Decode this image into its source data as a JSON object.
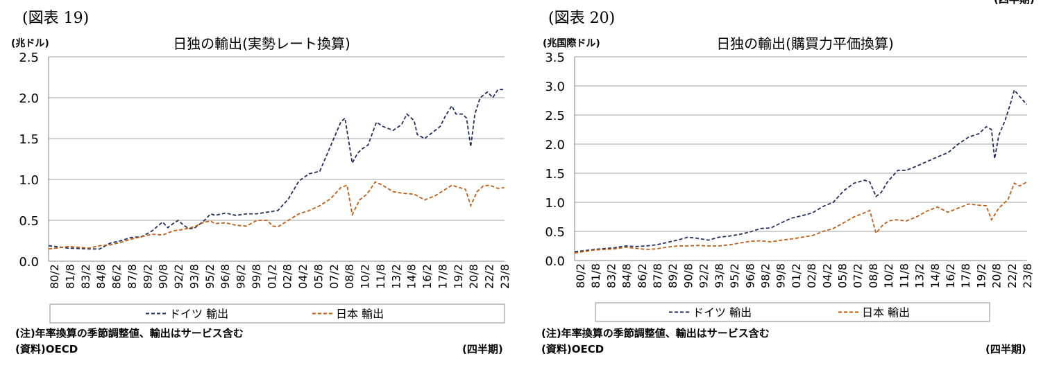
{
  "page": {
    "corner_label": "(四半期)"
  },
  "chart_data": [
    {
      "figure_label": "(図表 19)",
      "title": "日独の輸出(実勢レート換算)",
      "unit": "(兆ドル)",
      "type": "line",
      "ylim": [
        0,
        2.5
      ],
      "yticks": [
        "0.0",
        "0.5",
        "1.0",
        "1.5",
        "2.0",
        "2.5"
      ],
      "grid": true,
      "legend_position": "bottom",
      "x_labels": [
        "80/2",
        "81/8",
        "83/2",
        "84/8",
        "86/2",
        "87/8",
        "89/2",
        "90/8",
        "92/2",
        "93/8",
        "95/2",
        "96/8",
        "98/2",
        "99/8",
        "01/2",
        "02/8",
        "04/2",
        "05/8",
        "07/2",
        "08/8",
        "10/2",
        "11/8",
        "13/2",
        "14/8",
        "16/2",
        "17/8",
        "19/2",
        "20/8",
        "22/2",
        "23/8"
      ],
      "series": [
        {
          "name": "ドイツ 輸出",
          "color": "#1f2d5c",
          "values": [
            [
              1980.13,
              0.19
            ],
            [
              1982,
              0.16
            ],
            [
              1984,
              0.15
            ],
            [
              1985,
              0.15
            ],
            [
              1986,
              0.22
            ],
            [
              1987,
              0.25
            ],
            [
              1988,
              0.29
            ],
            [
              1989,
              0.3
            ],
            [
              1990,
              0.37
            ],
            [
              1991,
              0.48
            ],
            [
              1991.5,
              0.41
            ],
            [
              1992,
              0.46
            ],
            [
              1992.5,
              0.5
            ],
            [
              1993,
              0.44
            ],
            [
              1993.5,
              0.4
            ],
            [
              1994,
              0.4
            ],
            [
              1995,
              0.5
            ],
            [
              1995.6,
              0.58
            ],
            [
              1996,
              0.56
            ],
            [
              1997,
              0.59
            ],
            [
              1998,
              0.56
            ],
            [
              1999,
              0.58
            ],
            [
              2000,
              0.58
            ],
            [
              2001,
              0.6
            ],
            [
              2002,
              0.62
            ],
            [
              2003,
              0.76
            ],
            [
              2004,
              0.98
            ],
            [
              2005,
              1.07
            ],
            [
              2006,
              1.1
            ],
            [
              2007,
              1.4
            ],
            [
              2008,
              1.7
            ],
            [
              2008.4,
              1.75
            ],
            [
              2009.1,
              1.2
            ],
            [
              2009.6,
              1.32
            ],
            [
              2010.1,
              1.38
            ],
            [
              2010.6,
              1.42
            ],
            [
              2011.4,
              1.7
            ],
            [
              2012,
              1.65
            ],
            [
              2013,
              1.6
            ],
            [
              2013.8,
              1.67
            ],
            [
              2014.3,
              1.8
            ],
            [
              2015,
              1.72
            ],
            [
              2015.3,
              1.55
            ],
            [
              2016,
              1.5
            ],
            [
              2016.8,
              1.58
            ],
            [
              2017.5,
              1.65
            ],
            [
              2018,
              1.78
            ],
            [
              2018.6,
              1.9
            ],
            [
              2019,
              1.8
            ],
            [
              2019.6,
              1.8
            ],
            [
              2020,
              1.75
            ],
            [
              2020.4,
              1.4
            ],
            [
              2020.8,
              1.8
            ],
            [
              2021.3,
              2.0
            ],
            [
              2022,
              2.07
            ],
            [
              2022.5,
              2.0
            ],
            [
              2023,
              2.1
            ],
            [
              2023.6,
              2.1
            ]
          ]
        },
        {
          "name": "日本 輸出",
          "color": "#c55a11",
          "values": [
            [
              1980.13,
              0.15
            ],
            [
              1982,
              0.18
            ],
            [
              1984,
              0.16
            ],
            [
              1985,
              0.19
            ],
            [
              1986,
              0.2
            ],
            [
              1987,
              0.23
            ],
            [
              1988,
              0.27
            ],
            [
              1989,
              0.3
            ],
            [
              1990,
              0.33
            ],
            [
              1991,
              0.32
            ],
            [
              1992,
              0.37
            ],
            [
              1993,
              0.39
            ],
            [
              1994,
              0.42
            ],
            [
              1995,
              0.48
            ],
            [
              1995.6,
              0.49
            ],
            [
              1996,
              0.46
            ],
            [
              1997,
              0.47
            ],
            [
              1998,
              0.44
            ],
            [
              1999,
              0.43
            ],
            [
              2000,
              0.5
            ],
            [
              2001,
              0.5
            ],
            [
              2001.5,
              0.43
            ],
            [
              2002,
              0.42
            ],
            [
              2003,
              0.5
            ],
            [
              2004,
              0.58
            ],
            [
              2005,
              0.62
            ],
            [
              2006,
              0.68
            ],
            [
              2007,
              0.76
            ],
            [
              2008,
              0.9
            ],
            [
              2008.6,
              0.93
            ],
            [
              2009.1,
              0.57
            ],
            [
              2009.8,
              0.75
            ],
            [
              2010.5,
              0.82
            ],
            [
              2011.3,
              0.97
            ],
            [
              2012,
              0.93
            ],
            [
              2013,
              0.85
            ],
            [
              2014,
              0.83
            ],
            [
              2015,
              0.82
            ],
            [
              2016,
              0.75
            ],
            [
              2017,
              0.8
            ],
            [
              2018,
              0.88
            ],
            [
              2018.6,
              0.93
            ],
            [
              2019.3,
              0.9
            ],
            [
              2019.9,
              0.88
            ],
            [
              2020.4,
              0.68
            ],
            [
              2021,
              0.85
            ],
            [
              2021.6,
              0.92
            ],
            [
              2022.2,
              0.93
            ],
            [
              2023,
              0.89
            ],
            [
              2023.6,
              0.9
            ]
          ]
        }
      ],
      "note": "(注)年率換算の季節調整値、輸出はサービス含む",
      "source": "(資料)OECD",
      "period_label": "(四半期)"
    },
    {
      "figure_label": "(図表 20)",
      "title": "日独の輸出(購買力平価換算)",
      "unit": "(兆国際ドル)",
      "type": "line",
      "ylim": [
        0,
        3.5
      ],
      "yticks": [
        "0.0",
        "0.5",
        "1.0",
        "1.5",
        "2.0",
        "2.5",
        "3.0",
        "3.5"
      ],
      "grid": true,
      "legend_position": "bottom",
      "x_labels": [
        "80/2",
        "81/8",
        "83/2",
        "84/8",
        "86/2",
        "87/8",
        "89/2",
        "90/8",
        "92/2",
        "93/8",
        "95/2",
        "96/8",
        "98/2",
        "99/8",
        "01/2",
        "02/8",
        "04/2",
        "05/8",
        "07/2",
        "08/8",
        "10/2",
        "11/8",
        "13/2",
        "14/8",
        "16/2",
        "17/8",
        "19/2",
        "20/8",
        "22/2",
        "23/8"
      ],
      "series": [
        {
          "name": "ドイツ 輸出",
          "color": "#1f2d5c",
          "values": [
            [
              1980.13,
              0.15
            ],
            [
              1982,
              0.19
            ],
            [
              1984,
              0.22
            ],
            [
              1985,
              0.25
            ],
            [
              1986,
              0.24
            ],
            [
              1987,
              0.25
            ],
            [
              1988,
              0.27
            ],
            [
              1989,
              0.31
            ],
            [
              1990,
              0.35
            ],
            [
              1991,
              0.4
            ],
            [
              1992,
              0.38
            ],
            [
              1993,
              0.35
            ],
            [
              1994,
              0.4
            ],
            [
              1995,
              0.42
            ],
            [
              1996,
              0.45
            ],
            [
              1997,
              0.49
            ],
            [
              1998,
              0.55
            ],
            [
              1999,
              0.56
            ],
            [
              2000,
              0.65
            ],
            [
              2001,
              0.73
            ],
            [
              2002,
              0.77
            ],
            [
              2003,
              0.82
            ],
            [
              2004,
              0.93
            ],
            [
              2005,
              1.0
            ],
            [
              2006,
              1.2
            ],
            [
              2007,
              1.33
            ],
            [
              2008,
              1.38
            ],
            [
              2008.5,
              1.35
            ],
            [
              2009.1,
              1.1
            ],
            [
              2009.6,
              1.17
            ],
            [
              2010.2,
              1.35
            ],
            [
              2011.2,
              1.55
            ],
            [
              2012,
              1.55
            ],
            [
              2013,
              1.62
            ],
            [
              2014,
              1.7
            ],
            [
              2015,
              1.78
            ],
            [
              2016,
              1.85
            ],
            [
              2017,
              2.0
            ],
            [
              2018,
              2.12
            ],
            [
              2019,
              2.18
            ],
            [
              2019.7,
              2.3
            ],
            [
              2020.2,
              2.25
            ],
            [
              2020.5,
              1.75
            ],
            [
              2020.9,
              2.15
            ],
            [
              2021.5,
              2.4
            ],
            [
              2022,
              2.68
            ],
            [
              2022.4,
              2.93
            ],
            [
              2022.9,
              2.82
            ],
            [
              2023.6,
              2.68
            ]
          ]
        },
        {
          "name": "日本 輸出",
          "color": "#c55a11",
          "values": [
            [
              1980.13,
              0.13
            ],
            [
              1982,
              0.18
            ],
            [
              1984,
              0.2
            ],
            [
              1985,
              0.23
            ],
            [
              1986,
              0.21
            ],
            [
              1987,
              0.19
            ],
            [
              1988,
              0.2
            ],
            [
              1989,
              0.23
            ],
            [
              1990,
              0.25
            ],
            [
              1991,
              0.25
            ],
            [
              1992,
              0.26
            ],
            [
              1993,
              0.25
            ],
            [
              1994,
              0.25
            ],
            [
              1995,
              0.27
            ],
            [
              1996,
              0.3
            ],
            [
              1997,
              0.33
            ],
            [
              1998,
              0.34
            ],
            [
              1999,
              0.32
            ],
            [
              2000,
              0.35
            ],
            [
              2001,
              0.37
            ],
            [
              2002,
              0.4
            ],
            [
              2003,
              0.43
            ],
            [
              2004,
              0.5
            ],
            [
              2005,
              0.55
            ],
            [
              2006,
              0.65
            ],
            [
              2007,
              0.75
            ],
            [
              2008,
              0.82
            ],
            [
              2008.5,
              0.86
            ],
            [
              2009.1,
              0.47
            ],
            [
              2009.7,
              0.6
            ],
            [
              2010.3,
              0.68
            ],
            [
              2011,
              0.7
            ],
            [
              2012,
              0.68
            ],
            [
              2013,
              0.75
            ],
            [
              2014,
              0.85
            ],
            [
              2015,
              0.92
            ],
            [
              2016,
              0.83
            ],
            [
              2017,
              0.9
            ],
            [
              2018,
              0.97
            ],
            [
              2019,
              0.95
            ],
            [
              2019.7,
              0.94
            ],
            [
              2020.2,
              0.7
            ],
            [
              2020.9,
              0.9
            ],
            [
              2021.8,
              1.05
            ],
            [
              2022.4,
              1.33
            ],
            [
              2022.9,
              1.28
            ],
            [
              2023.6,
              1.35
            ]
          ]
        }
      ],
      "note": "(注)年率換算の季節調整値、輸出はサービス含む",
      "source": "(資料)OECD",
      "period_label": "(四半期)"
    }
  ]
}
